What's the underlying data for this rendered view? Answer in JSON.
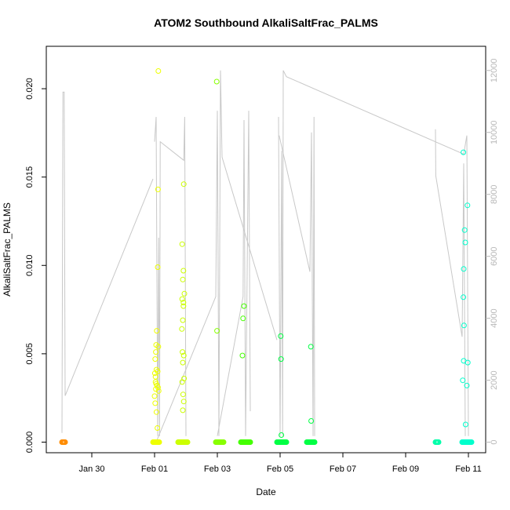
{
  "chart_data": {
    "type": "scatter",
    "title": "ATOM2 Southbound AlkaliSaltFrac_PALMS",
    "xlabel": "Date",
    "ylabel": "AlkaliSaltFrac_PALMS",
    "x_ticks": [
      "Jan 30",
      "Feb 01",
      "Feb 03",
      "Feb 05",
      "Feb 07",
      "Feb 09",
      "Feb 11"
    ],
    "x_tick_days": [
      -2,
      0,
      2,
      4,
      6,
      8,
      10
    ],
    "xlim_days": [
      -3.45,
      10.55
    ],
    "y_ticks": [
      0.0,
      0.005,
      0.01,
      0.015,
      0.02
    ],
    "y_tick_labels": [
      "0.000",
      "0.005",
      "0.010",
      "0.015",
      "0.020"
    ],
    "ylim": [
      -0.0006,
      0.0224
    ],
    "y2_ticks": [
      0,
      2000,
      4000,
      6000,
      8000,
      10000,
      12000
    ],
    "y2_tick_labels": [
      "0",
      "2000",
      "4000",
      "6000",
      "8000",
      "10000",
      "12000"
    ],
    "y2lim": [
      -340,
      12780
    ],
    "line_color": "#c8c8c8",
    "colors": {
      "orange": "#ff8c00",
      "yellow": "#eeff00",
      "yellowgreen": "#ccff00",
      "chartreuse": "#88ff00",
      "green": "#44ff00",
      "springgreen": "#00ff44",
      "aquamarine": "#00ffaa",
      "cyan": "#00ffcc"
    },
    "series": [
      {
        "color": "orange",
        "x_range": [
          -2.95,
          -2.85
        ],
        "values": []
      },
      {
        "color": "yellow",
        "x_range": [
          -0.05,
          0.15
        ],
        "x": [
          0.12,
          0.11,
          0.1,
          0.07,
          0.05,
          0.02,
          0.06,
          0.1,
          0.01,
          0.03,
          0.05,
          0.08,
          0.11,
          0.04,
          0.13,
          0.0,
          0.02,
          0.06,
          0.09,
          0.03,
          0.04,
          0.12
        ],
        "values": [
          0.021,
          0.0143,
          0.0099,
          0.0063,
          0.0055,
          0.0047,
          0.0041,
          0.004,
          0.0039,
          0.0034,
          0.0033,
          0.0032,
          0.0031,
          0.003,
          0.0029,
          0.0026,
          0.0022,
          0.0017,
          0.0008,
          0.0037,
          0.0051,
          0.0054
        ]
      },
      {
        "color": "yellowgreen",
        "x_range": [
          0.75,
          1.05
        ],
        "x": [
          0.93,
          0.88,
          0.92,
          0.9,
          0.95,
          0.88,
          0.92,
          0.9,
          0.89,
          0.93,
          0.9,
          0.94,
          0.88,
          0.91,
          0.93,
          0.9,
          0.87,
          0.92
        ],
        "values": [
          0.0146,
          0.0112,
          0.0097,
          0.0092,
          0.0084,
          0.0081,
          0.0077,
          0.0069,
          0.0051,
          0.0049,
          0.0045,
          0.0036,
          0.0034,
          0.0027,
          0.0023,
          0.0018,
          0.0064,
          0.0079
        ]
      },
      {
        "color": "chartreuse",
        "x_range": [
          1.95,
          2.2
        ],
        "x": [
          1.98,
          1.99
        ],
        "values": [
          0.0204,
          0.0063
        ]
      },
      {
        "color": "green",
        "x_range": [
          2.75,
          3.05
        ],
        "x": [
          2.85,
          2.82,
          2.8
        ],
        "values": [
          0.0077,
          0.007,
          0.0049
        ]
      },
      {
        "color": "springgreen",
        "x_range": [
          3.9,
          4.2
        ],
        "x": [
          4.02,
          4.03,
          4.04
        ],
        "values": [
          0.006,
          0.0047,
          0.0004
        ]
      },
      {
        "color": "springgreen",
        "x_range": [
          4.85,
          5.1
        ],
        "x": [
          4.98,
          4.99
        ],
        "values": [
          0.0054,
          0.0012
        ]
      },
      {
        "color": "aquamarine",
        "x_range": [
          8.95,
          9.05
        ],
        "values": []
      },
      {
        "color": "cyan",
        "x_range": [
          9.8,
          10.1
        ],
        "x": [
          9.84,
          9.97,
          9.88,
          9.9,
          9.85,
          9.84,
          9.86,
          9.85,
          9.98,
          9.82,
          9.95,
          9.91
        ],
        "values": [
          0.0164,
          0.0134,
          0.012,
          0.0113,
          0.0098,
          0.0082,
          0.0066,
          0.0046,
          0.0045,
          0.0035,
          0.0032,
          0.001
        ]
      }
    ],
    "line_segments": [
      [
        [
          -2.95,
          300
        ],
        [
          -2.92,
          11300
        ],
        [
          -2.88,
          11300
        ],
        [
          -2.85,
          1500
        ],
        [
          -0.05,
          8500
        ]
      ],
      [
        [
          0.0,
          9700
        ],
        [
          0.05,
          10500
        ],
        [
          0.1,
          200
        ],
        [
          0.13,
          6600
        ],
        [
          0.16,
          200
        ],
        [
          0.18,
          9700
        ],
        [
          0.93,
          9100
        ],
        [
          0.96,
          10500
        ],
        [
          1.0,
          200
        ]
      ],
      [
        [
          0.05,
          0
        ],
        [
          1.95,
          4700
        ],
        [
          2.0,
          10700
        ],
        [
          2.05,
          200
        ],
        [
          2.1,
          12000
        ],
        [
          2.15,
          9200
        ],
        [
          3.9,
          3300
        ]
      ],
      [
        [
          2.0,
          200
        ],
        [
          2.82,
          4700
        ],
        [
          2.85,
          10400
        ],
        [
          2.9,
          200
        ],
        [
          3.0,
          10700
        ],
        [
          3.05,
          1000
        ]
      ],
      [
        [
          3.95,
          10500
        ],
        [
          4.0,
          200
        ],
        [
          4.05,
          9400
        ],
        [
          4.08,
          200
        ],
        [
          4.1,
          12000
        ],
        [
          4.2,
          11800
        ],
        [
          9.85,
          9300
        ],
        [
          9.95,
          9900
        ],
        [
          10.0,
          200
        ]
      ],
      [
        [
          3.97,
          9900
        ],
        [
          4.95,
          5500
        ],
        [
          5.0,
          10000
        ],
        [
          5.05,
          200
        ],
        [
          5.08,
          10500
        ],
        [
          5.1,
          200
        ]
      ],
      [
        [
          8.95,
          10100
        ],
        [
          8.96,
          8600
        ],
        [
          9.8,
          3400
        ],
        [
          9.85,
          9000
        ],
        [
          9.9,
          200
        ]
      ]
    ]
  }
}
